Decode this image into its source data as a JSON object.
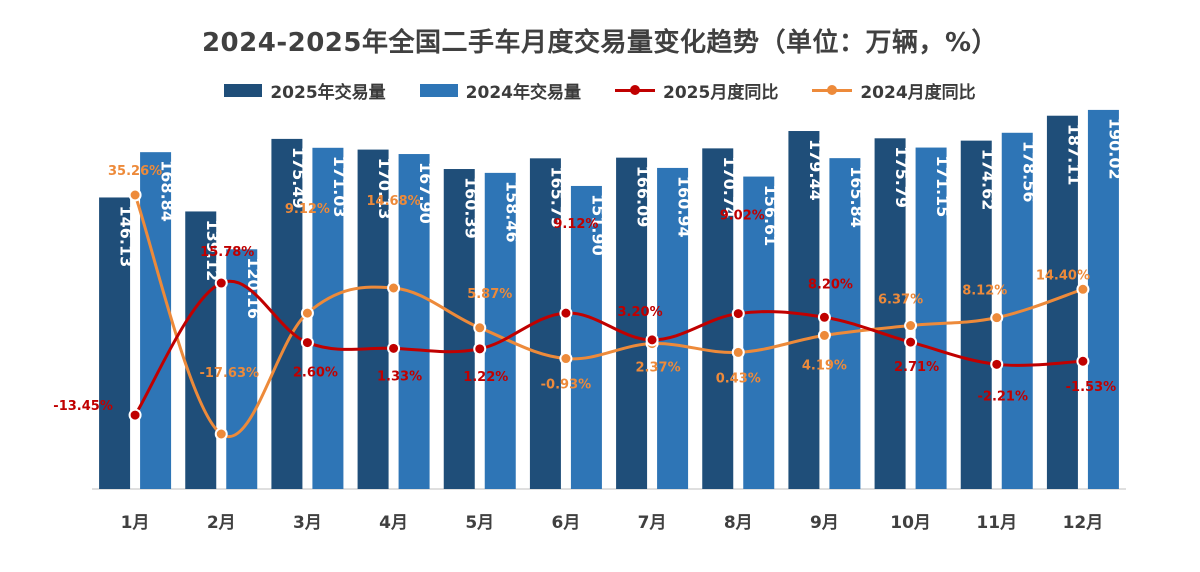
{
  "chart_data": {
    "type": "bar",
    "title": "2024-2025年全国二手车月度交易量变化趋势（单位：万辆，%）",
    "categories": [
      "1月",
      "2月",
      "3月",
      "4月",
      "5月",
      "6月",
      "7月",
      "8月",
      "9月",
      "10月",
      "11月",
      "12月"
    ],
    "series": [
      {
        "name": "2025年交易量",
        "type": "bar",
        "color": "#1f4e79",
        "values": [
          146.13,
          139.12,
          175.49,
          170.13,
          160.39,
          165.75,
          166.09,
          170.74,
          179.44,
          175.79,
          174.62,
          187.11
        ]
      },
      {
        "name": "2024年交易量",
        "type": "bar",
        "color": "#2e75b6",
        "values": [
          168.84,
          120.16,
          171.03,
          167.9,
          158.46,
          151.9,
          160.94,
          156.61,
          165.84,
          171.15,
          178.56,
          190.02
        ]
      },
      {
        "name": "2025月度同比",
        "type": "line",
        "color": "#c00000",
        "values": [
          -13.45,
          15.78,
          2.6,
          1.33,
          1.22,
          9.12,
          3.2,
          9.02,
          8.2,
          2.71,
          -2.21,
          -1.53
        ],
        "labels": [
          "-13.45%",
          "15.78%",
          "2.60%",
          "1.33%",
          "1.22%",
          "9.12%",
          "3.20%",
          "9.02%",
          "8.20%",
          "2.71%",
          "-2.21%",
          "-1.53%"
        ]
      },
      {
        "name": "2024月度同比",
        "type": "line",
        "color": "#ed8a3a",
        "values": [
          35.26,
          -17.63,
          9.12,
          14.68,
          5.87,
          -0.93,
          2.37,
          0.43,
          4.19,
          6.37,
          8.12,
          14.4
        ],
        "labels": [
          "35.26%",
          "-17.63%",
          "9.12%",
          "14.68%",
          "5.87%",
          "-0.93%",
          "2.37%",
          "0.43%",
          "4.19%",
          "6.37%",
          "8.12%",
          "14.40%"
        ]
      }
    ],
    "bar_ylim": [
      0,
      200
    ],
    "line_ylim": [
      -40,
      40
    ],
    "legend_position": "top-center",
    "grid": false
  }
}
